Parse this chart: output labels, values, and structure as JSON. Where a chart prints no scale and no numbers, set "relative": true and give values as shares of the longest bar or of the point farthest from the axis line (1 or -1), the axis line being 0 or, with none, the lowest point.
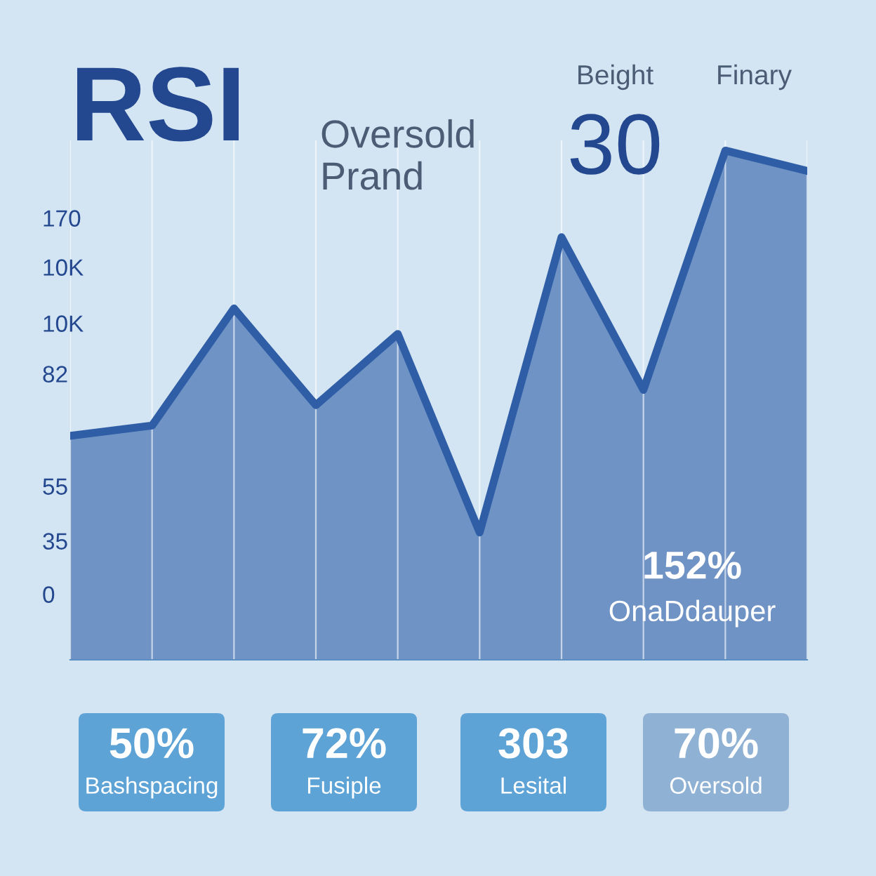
{
  "chart_data": {
    "type": "area",
    "title": "RSI",
    "subtitle": "Oversold\nPrand",
    "relative": true,
    "categories": [
      null,
      null,
      null,
      null,
      null,
      null,
      null,
      null,
      null,
      null
    ],
    "series": [
      {
        "color": "#2f5ea6",
        "values": [
          0.44,
          0.46,
          0.69,
          0.5,
          0.64,
          0.25,
          0.83,
          0.53,
          1,
          0.96
        ]
      }
    ],
    "grid": "x",
    "annotations": [
      "Beight",
      "Finary",
      "30",
      "170",
      "10K",
      "10K",
      "82",
      "55",
      "35",
      "0",
      "152%",
      "OnaDdauper",
      "50%",
      "Bashspacing",
      "72%",
      "Fusiple",
      "303",
      "Lesital",
      "70%",
      "Oversold"
    ]
  }
}
